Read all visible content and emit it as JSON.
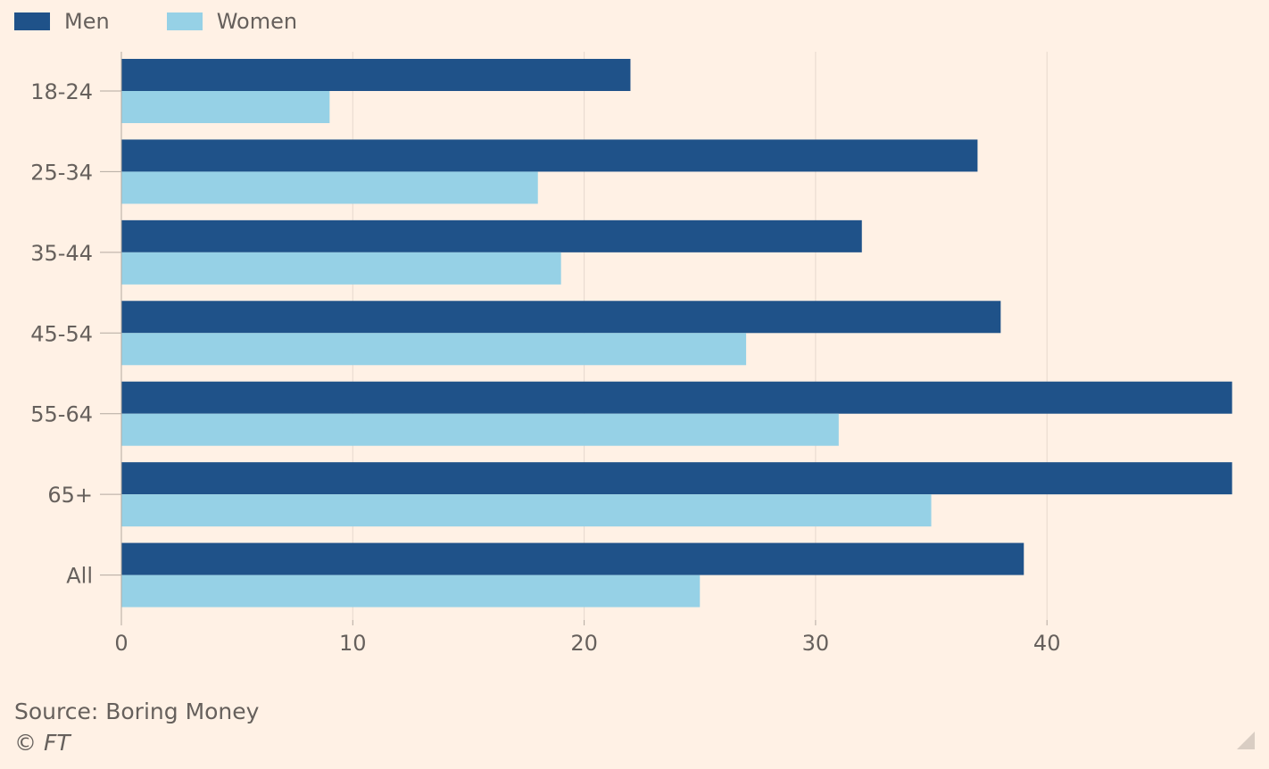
{
  "chart_data": {
    "type": "bar",
    "orientation": "horizontal",
    "categories": [
      "18-24",
      "25-34",
      "35-44",
      "45-54",
      "55-64",
      "65+",
      "All"
    ],
    "series": [
      {
        "name": "Men",
        "color": "#1f5289",
        "values": [
          22,
          37,
          32,
          38,
          48,
          48,
          39
        ]
      },
      {
        "name": "Women",
        "color": "#96d1e6",
        "values": [
          9,
          18,
          19,
          27,
          31,
          35,
          25
        ]
      }
    ],
    "xticks": [
      "0",
      "10",
      "20",
      "30",
      "40"
    ],
    "xlim": [
      0,
      48
    ],
    "grid": true,
    "legend_position": "top-left"
  },
  "source": "Source: Boring Money",
  "copyright": "© FT"
}
